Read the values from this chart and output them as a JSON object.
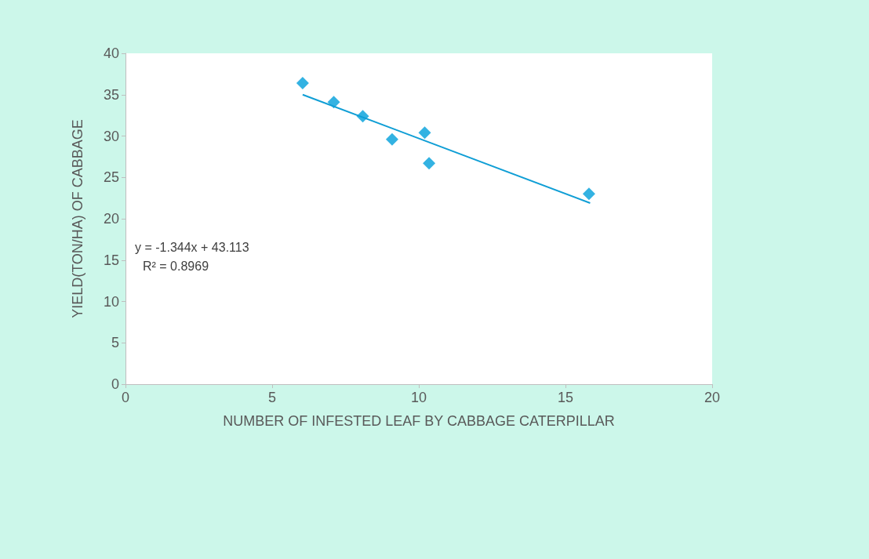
{
  "chart_data": {
    "type": "scatter",
    "xlabel": "NUMBER OF INFESTED LEAF BY CABBAGE CATERPILLAR",
    "ylabel": "YIELD(TON/HA) OF CABBAGE",
    "x": [
      6.04,
      7.1,
      8.09,
      9.09,
      10.2,
      10.35,
      15.8
    ],
    "series": [
      {
        "color": "#009fdb",
        "marker": "diamond",
        "values": [
          36.4,
          34.1,
          32.4,
          29.6,
          30.4,
          26.7,
          23.0
        ]
      },
      {
        "type": "line",
        "color": "#0f9ed5",
        "marker": "none",
        "x": [
          6.04,
          15.84
        ],
        "values": [
          35.0,
          21.9
        ]
      }
    ],
    "xlim": [
      0,
      20
    ],
    "xticks": [
      0,
      5,
      10,
      15,
      20
    ],
    "ylim": [
      0,
      40
    ],
    "yticks": [
      0,
      5,
      10,
      15,
      20,
      25,
      30,
      35,
      40
    ],
    "grid": false,
    "annotations": [
      "y = -1.344x + 43.113",
      "R² = 0.8969"
    ]
  }
}
